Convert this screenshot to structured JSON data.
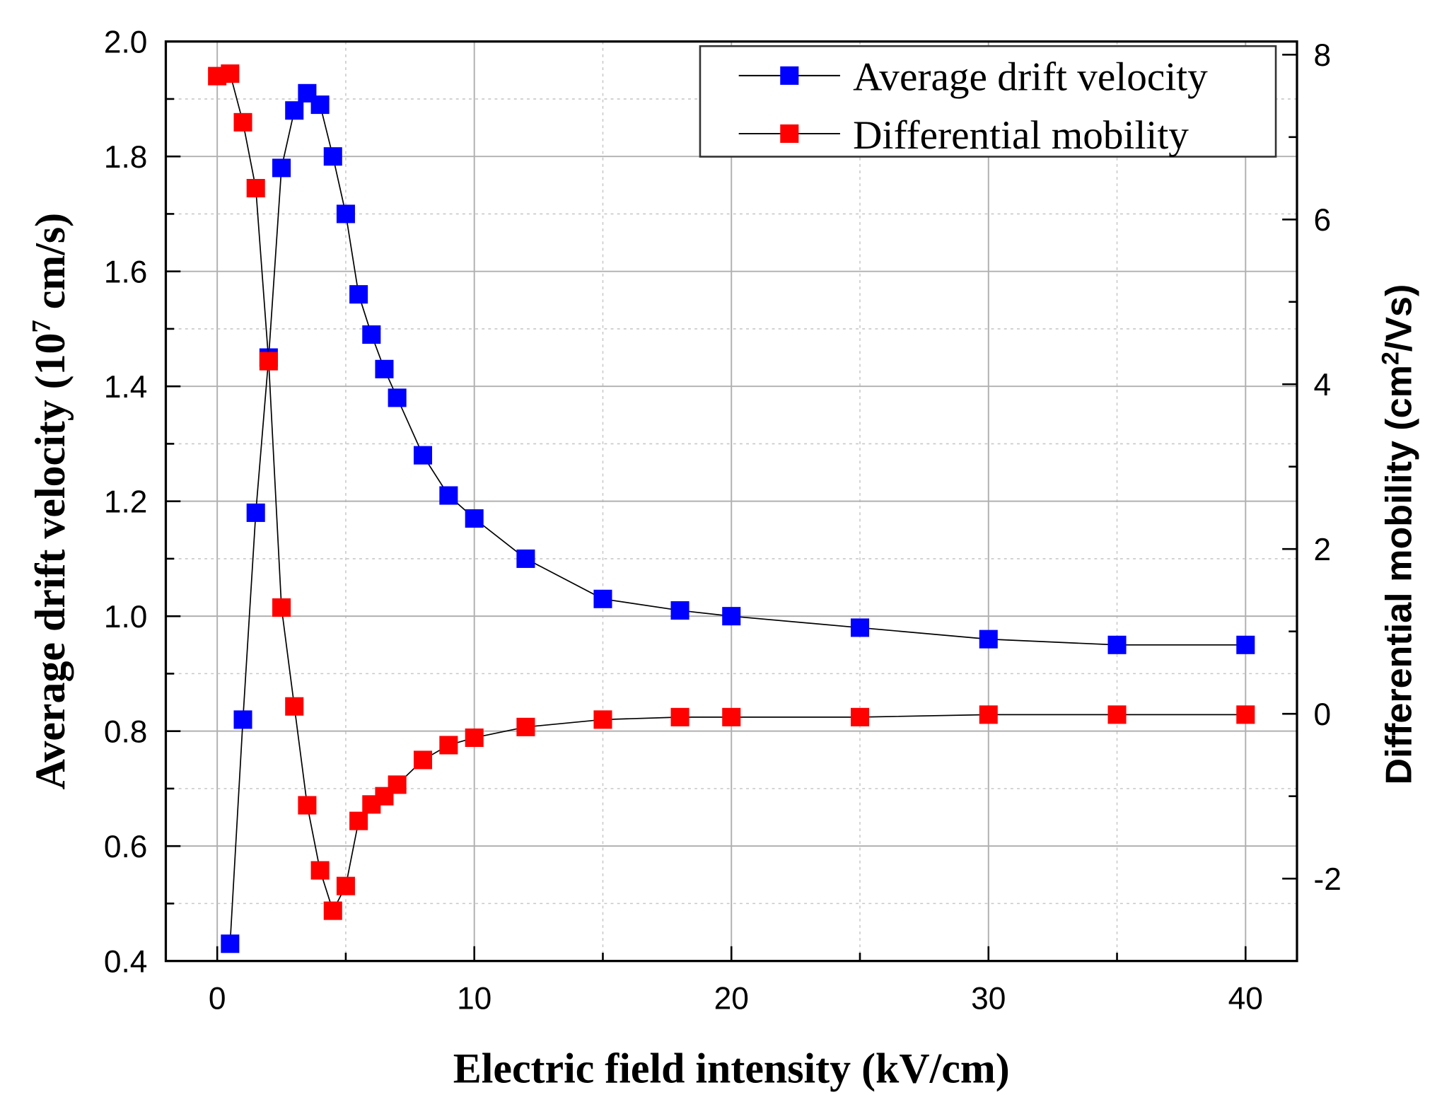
{
  "chart_data": {
    "type": "line",
    "xlabel": "Electric field intensity (kV/cm)",
    "ylabel_left": {
      "main": "Average drift velocity (10",
      "sup": "7",
      "tail": " cm/s)"
    },
    "ylabel_right": {
      "main": "Differential mobility (cm",
      "sup": "2",
      "tail": "/Vs)"
    },
    "xlim": [
      -2,
      42
    ],
    "ylim_left": [
      0.4,
      2.0
    ],
    "ylim_right": [
      -3.0,
      8.16
    ],
    "xticks": [
      0,
      10,
      20,
      30,
      40
    ],
    "yticks_left": [
      0.4,
      0.6,
      0.8,
      1.0,
      1.2,
      1.4,
      1.6,
      1.8,
      2.0
    ],
    "yticks_left_labels": [
      "0.4",
      "0.6",
      "0.8",
      "1.0",
      "1.2",
      "1.4",
      "1.6",
      "1.8",
      "2.0"
    ],
    "yticks_right": [
      -2,
      0,
      2,
      4,
      6,
      8
    ],
    "grid": true,
    "legend_position": "top-right",
    "series": [
      {
        "name": "Average drift velocity",
        "axis": "left",
        "color": "#0000ff",
        "x": [
          0.5,
          1,
          1.5,
          2,
          2.5,
          3,
          3.5,
          4,
          4.5,
          5,
          5.5,
          6,
          6.5,
          7,
          8,
          9,
          10,
          12,
          15,
          18,
          20,
          25,
          30,
          35,
          40
        ],
        "y": [
          0.43,
          0.82,
          1.18,
          1.45,
          1.78,
          1.88,
          1.91,
          1.89,
          1.8,
          1.7,
          1.56,
          1.49,
          1.43,
          1.38,
          1.28,
          1.21,
          1.17,
          1.1,
          1.03,
          1.01,
          1.0,
          0.98,
          0.96,
          0.95,
          0.95
        ]
      },
      {
        "name": "Differential mobility",
        "axis": "right",
        "color": "#ff0000",
        "x": [
          0,
          0.5,
          1,
          1.5,
          2,
          2.5,
          3,
          3.5,
          4,
          4.5,
          5,
          5.5,
          6,
          6.5,
          7,
          8,
          9,
          10,
          12,
          15,
          18,
          20,
          25,
          30,
          35,
          40
        ],
        "y": [
          7.74,
          7.77,
          7.18,
          6.38,
          4.28,
          1.29,
          0.09,
          -1.11,
          -1.9,
          -2.39,
          -2.09,
          -1.3,
          -1.1,
          -1.0,
          -0.86,
          -0.56,
          -0.38,
          -0.29,
          -0.16,
          -0.07,
          -0.04,
          -0.04,
          -0.04,
          -0.01,
          -0.01,
          -0.01
        ]
      }
    ]
  }
}
